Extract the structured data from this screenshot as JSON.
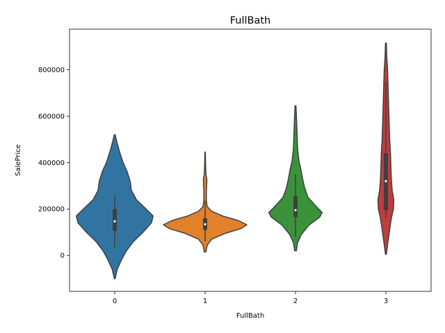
{
  "chart_data": {
    "type": "violin",
    "title": "FullBath",
    "xlabel": "FullBath",
    "ylabel": "SalePrice",
    "categories": [
      "0",
      "1",
      "2",
      "3"
    ],
    "yticks": [
      "0",
      "200000",
      "400000",
      "600000",
      "800000"
    ],
    "ylim": [
      -155000,
      975000
    ],
    "grid": false,
    "legend": "none",
    "colors": [
      "#3274a1",
      "#e1812c",
      "#3a923a",
      "#c03d3e"
    ],
    "violins": [
      {
        "category": "0",
        "min": -100000,
        "max": 520000,
        "q1": 105000,
        "median": 147000,
        "q3": 200000,
        "whisker_low": 35000,
        "whisker_high": 260000,
        "density": [
          [
            -100000,
            0.01
          ],
          [
            -60000,
            0.06
          ],
          [
            -20000,
            0.16
          ],
          [
            20000,
            0.28
          ],
          [
            60000,
            0.45
          ],
          [
            100000,
            0.68
          ],
          [
            140000,
            0.88
          ],
          [
            170000,
            0.92
          ],
          [
            200000,
            0.75
          ],
          [
            240000,
            0.52
          ],
          [
            280000,
            0.4
          ],
          [
            320000,
            0.37
          ],
          [
            360000,
            0.3
          ],
          [
            400000,
            0.2
          ],
          [
            450000,
            0.11
          ],
          [
            490000,
            0.05
          ],
          [
            520000,
            0.01
          ]
        ]
      },
      {
        "category": "1",
        "min": 15000,
        "max": 445000,
        "q1": 110000,
        "median": 134000,
        "q3": 160000,
        "whisker_low": 60000,
        "whisker_high": 235000,
        "density": [
          [
            15000,
            0.02
          ],
          [
            45000,
            0.05
          ],
          [
            70000,
            0.16
          ],
          [
            95000,
            0.48
          ],
          [
            115000,
            0.85
          ],
          [
            132000,
            1.0
          ],
          [
            150000,
            0.8
          ],
          [
            170000,
            0.42
          ],
          [
            190000,
            0.16
          ],
          [
            210000,
            0.05
          ],
          [
            240000,
            0.03
          ],
          [
            280000,
            0.03
          ],
          [
            310000,
            0.04
          ],
          [
            330000,
            0.04
          ],
          [
            350000,
            0.02
          ],
          [
            400000,
            0.01
          ],
          [
            445000,
            0.005
          ]
        ]
      },
      {
        "category": "2",
        "min": 20000,
        "max": 645000,
        "q1": 165000,
        "median": 195000,
        "q3": 255000,
        "whisker_low": 80000,
        "whisker_high": 350000,
        "density": [
          [
            20000,
            0.02
          ],
          [
            55000,
            0.05
          ],
          [
            90000,
            0.14
          ],
          [
            130000,
            0.32
          ],
          [
            165000,
            0.58
          ],
          [
            185000,
            0.64
          ],
          [
            210000,
            0.5
          ],
          [
            250000,
            0.3
          ],
          [
            290000,
            0.22
          ],
          [
            330000,
            0.17
          ],
          [
            370000,
            0.13
          ],
          [
            410000,
            0.08
          ],
          [
            460000,
            0.05
          ],
          [
            510000,
            0.04
          ],
          [
            560000,
            0.03
          ],
          [
            610000,
            0.02
          ],
          [
            645000,
            0.01
          ]
        ]
      },
      {
        "category": "3",
        "min": 5000,
        "max": 915000,
        "q1": 195000,
        "median": 320000,
        "q3": 440000,
        "whisker_low": 160000,
        "whisker_high": 750000,
        "density": [
          [
            5000,
            0.01
          ],
          [
            60000,
            0.05
          ],
          [
            110000,
            0.09
          ],
          [
            160000,
            0.13
          ],
          [
            200000,
            0.18
          ],
          [
            240000,
            0.19
          ],
          [
            280000,
            0.15
          ],
          [
            330000,
            0.13
          ],
          [
            380000,
            0.12
          ],
          [
            440000,
            0.11
          ],
          [
            500000,
            0.09
          ],
          [
            560000,
            0.08
          ],
          [
            620000,
            0.07
          ],
          [
            680000,
            0.06
          ],
          [
            740000,
            0.05
          ],
          [
            800000,
            0.04
          ],
          [
            860000,
            0.02
          ],
          [
            915000,
            0.01
          ]
        ]
      }
    ]
  }
}
